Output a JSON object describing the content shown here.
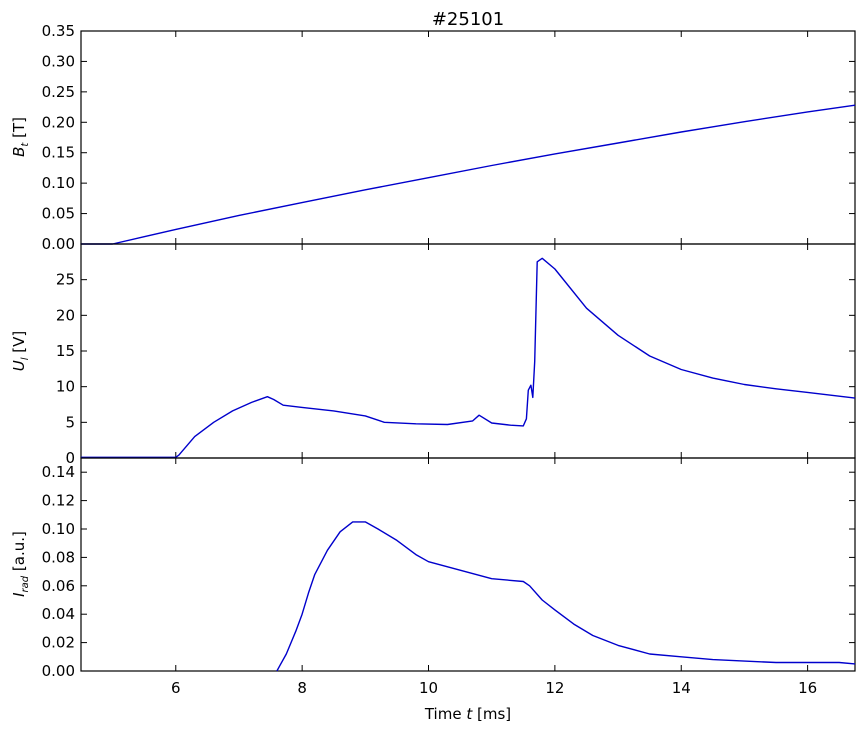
{
  "figure": {
    "title": "#25101",
    "line_color": "#0000cc"
  },
  "chart_data": [
    {
      "type": "line",
      "panel": "top",
      "title": "#25101",
      "ylabel": "B_t [T]",
      "ylabel_main": "B",
      "ylabel_sub": "t",
      "ylabel_unit": " [T]",
      "xlim": [
        4.5,
        16.75
      ],
      "ylim": [
        0.0,
        0.35
      ],
      "yticks": [
        0.0,
        0.05,
        0.1,
        0.15,
        0.2,
        0.25,
        0.3,
        0.35
      ],
      "ytick_labels": [
        "0.00",
        "0.05",
        "0.10",
        "0.15",
        "0.20",
        "0.25",
        "0.30",
        "0.35"
      ],
      "series": [
        {
          "x": [
            4.5,
            5.0,
            5.5,
            6.0,
            7.0,
            8.0,
            9.0,
            10.0,
            11.0,
            12.0,
            13.0,
            14.0,
            15.0,
            16.0,
            16.75
          ],
          "y": [
            0.0,
            0.0,
            0.012,
            0.024,
            0.047,
            0.068,
            0.089,
            0.109,
            0.129,
            0.148,
            0.166,
            0.184,
            0.201,
            0.217,
            0.228
          ]
        }
      ]
    },
    {
      "type": "line",
      "panel": "middle",
      "ylabel": "U_l [V]",
      "ylabel_main": "U",
      "ylabel_sub": "l",
      "ylabel_unit": " [V]",
      "xlim": [
        4.5,
        16.75
      ],
      "ylim": [
        0,
        30
      ],
      "yticks": [
        0,
        5,
        10,
        15,
        20,
        25
      ],
      "ytick_labels": [
        "0",
        "5",
        "10",
        "15",
        "20",
        "25"
      ],
      "series": [
        {
          "x": [
            4.5,
            6.0,
            6.05,
            6.3,
            6.6,
            6.9,
            7.2,
            7.45,
            7.55,
            7.7,
            8.0,
            8.5,
            9.0,
            9.3,
            9.8,
            10.3,
            10.7,
            10.8,
            11.0,
            11.3,
            11.5,
            11.55,
            11.58,
            11.62,
            11.65,
            11.68,
            11.72,
            11.8,
            12.0,
            12.5,
            13.0,
            13.5,
            14.0,
            14.5,
            15.0,
            15.5,
            16.0,
            16.75
          ],
          "y": [
            0.1,
            0.1,
            0.4,
            3.0,
            5.0,
            6.6,
            7.8,
            8.6,
            8.2,
            7.4,
            7.1,
            6.6,
            5.9,
            5.0,
            4.8,
            4.7,
            5.2,
            6.0,
            4.9,
            4.6,
            4.5,
            5.5,
            9.5,
            10.2,
            8.5,
            13.5,
            27.5,
            28.0,
            26.5,
            21.0,
            17.2,
            14.3,
            12.4,
            11.2,
            10.3,
            9.7,
            9.2,
            8.4
          ]
        }
      ]
    },
    {
      "type": "line",
      "panel": "bottom",
      "ylabel": "I_rad [a.u.]",
      "ylabel_main": "I",
      "ylabel_sub": "rad",
      "ylabel_unit": " [a.u.]",
      "xlabel": "Time t [ms]",
      "xlabel_main": "Time ",
      "xlabel_var": "t",
      "xlabel_unit": " [ms]",
      "xlim": [
        4.5,
        16.75
      ],
      "ylim": [
        0.0,
        0.15
      ],
      "xticks": [
        6,
        8,
        10,
        12,
        14,
        16
      ],
      "xtick_labels": [
        "6",
        "8",
        "10",
        "12",
        "14",
        "16"
      ],
      "yticks": [
        0.0,
        0.02,
        0.04,
        0.06,
        0.08,
        0.1,
        0.12,
        0.14
      ],
      "ytick_labels": [
        "0.00",
        "0.02",
        "0.04",
        "0.06",
        "0.08",
        "0.10",
        "0.12",
        "0.14"
      ],
      "series": [
        {
          "x": [
            7.6,
            7.65,
            7.75,
            7.9,
            8.0,
            8.1,
            8.2,
            8.4,
            8.6,
            8.8,
            9.0,
            9.2,
            9.5,
            9.8,
            10.0,
            10.5,
            11.0,
            11.5,
            11.6,
            11.8,
            12.0,
            12.3,
            12.6,
            13.0,
            13.5,
            14.0,
            14.5,
            15.0,
            15.5,
            16.0,
            16.5,
            16.75
          ],
          "y": [
            0.0,
            0.004,
            0.012,
            0.028,
            0.04,
            0.055,
            0.068,
            0.085,
            0.098,
            0.105,
            0.105,
            0.1,
            0.092,
            0.082,
            0.077,
            0.071,
            0.065,
            0.063,
            0.06,
            0.05,
            0.043,
            0.033,
            0.025,
            0.018,
            0.012,
            0.01,
            0.008,
            0.007,
            0.006,
            0.006,
            0.006,
            0.005
          ]
        }
      ]
    }
  ]
}
